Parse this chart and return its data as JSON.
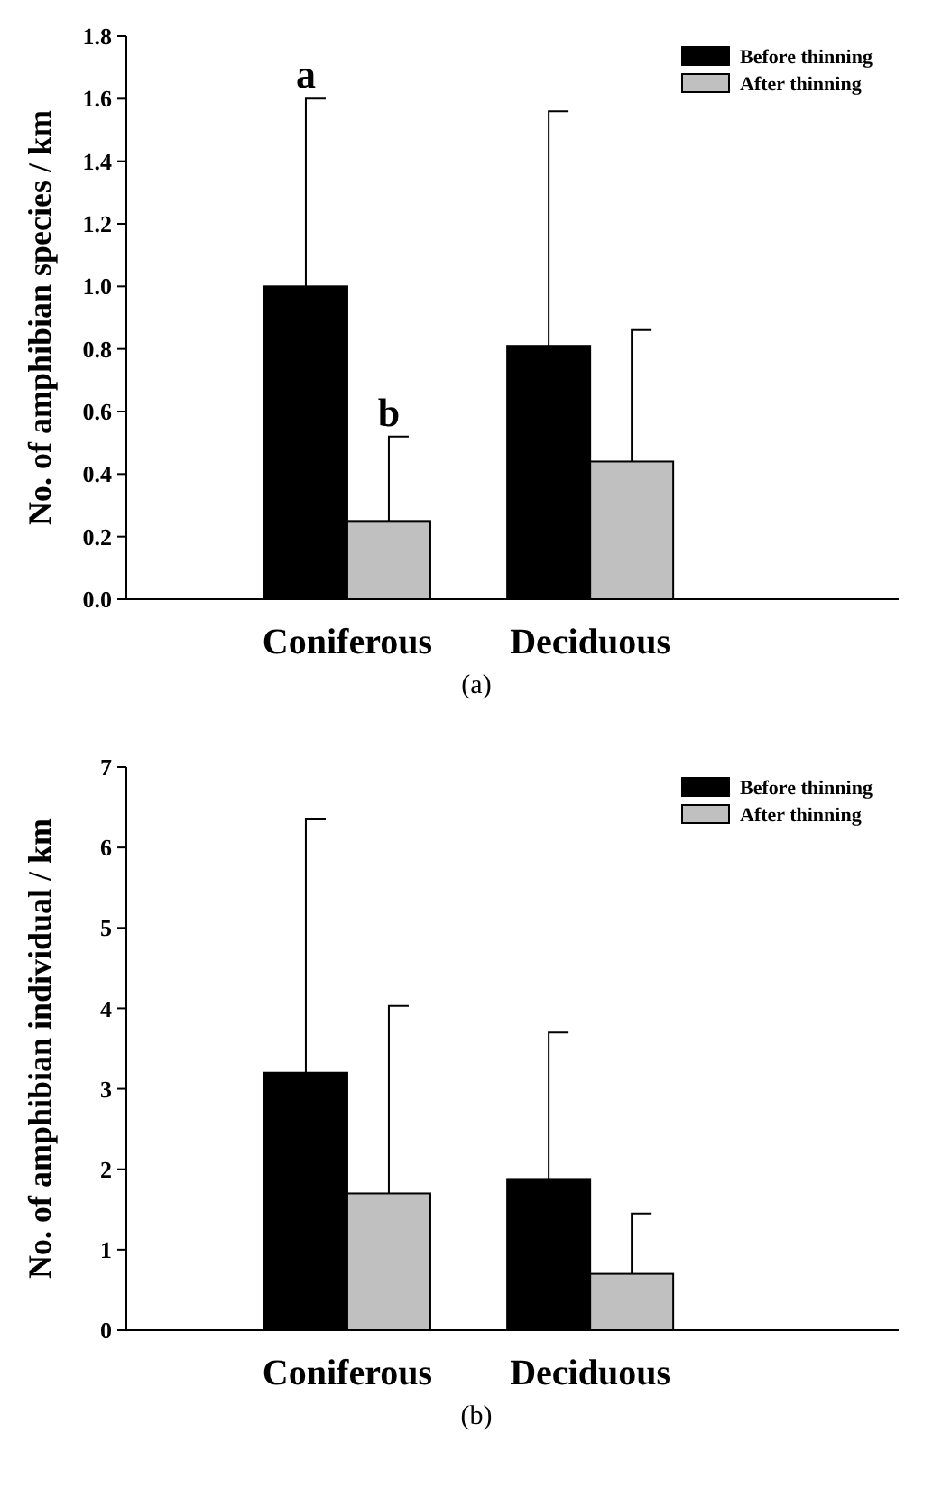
{
  "chart_data": [
    {
      "type": "bar",
      "ylabel": "No. of amphibian species / km",
      "categories": [
        "Coniferous",
        "Deciduous"
      ],
      "series": [
        {
          "name": "Before thinning",
          "color": "#000000",
          "values": [
            1.0,
            0.81
          ],
          "errors": [
            [
              1.0,
              1.6
            ],
            [
              0.81,
              1.56
            ]
          ]
        },
        {
          "name": "After thinning",
          "color": "#c0c0c0",
          "values": [
            0.25,
            0.44
          ],
          "errors": [
            [
              0.25,
              0.52
            ],
            [
              0.44,
              0.86
            ]
          ]
        }
      ],
      "ylim": [
        0,
        1.8
      ],
      "yticks": [
        {
          "value": 0,
          "label": "0.0"
        },
        {
          "value": 0.2,
          "label": "0.2"
        },
        {
          "value": 0.4,
          "label": "0.4"
        },
        {
          "value": 0.6,
          "label": "0.6"
        },
        {
          "value": 0.8,
          "label": "0.8"
        },
        {
          "value": 1,
          "label": "1.0"
        },
        {
          "value": 1.2,
          "label": "1.2"
        },
        {
          "value": 1.4,
          "label": "1.4"
        },
        {
          "value": 1.6,
          "label": "1.6"
        },
        {
          "value": 1.8,
          "label": "1.8"
        }
      ],
      "legend": "top right",
      "grid": false,
      "annotations": [
        "a",
        "b",
        "(a)"
      ]
    },
    {
      "type": "bar",
      "ylabel": "No. of amphibian individual / km",
      "categories": [
        "Coniferous",
        "Deciduous"
      ],
      "series": [
        {
          "name": "Before thinning",
          "color": "#000000",
          "values": [
            3.2,
            1.88
          ],
          "errors": [
            [
              3.2,
              6.35
            ],
            [
              1.88,
              3.7
            ]
          ]
        },
        {
          "name": "After thinning",
          "color": "#c0c0c0",
          "values": [
            1.7,
            0.7
          ],
          "errors": [
            [
              1.7,
              4.03
            ],
            [
              0.7,
              1.45
            ]
          ]
        }
      ],
      "ylim": [
        0,
        7
      ],
      "yticks": [
        0,
        1,
        2,
        3,
        4,
        5,
        6,
        7
      ],
      "legend": "top right",
      "grid": false,
      "annotations": [
        "(b)"
      ]
    }
  ]
}
